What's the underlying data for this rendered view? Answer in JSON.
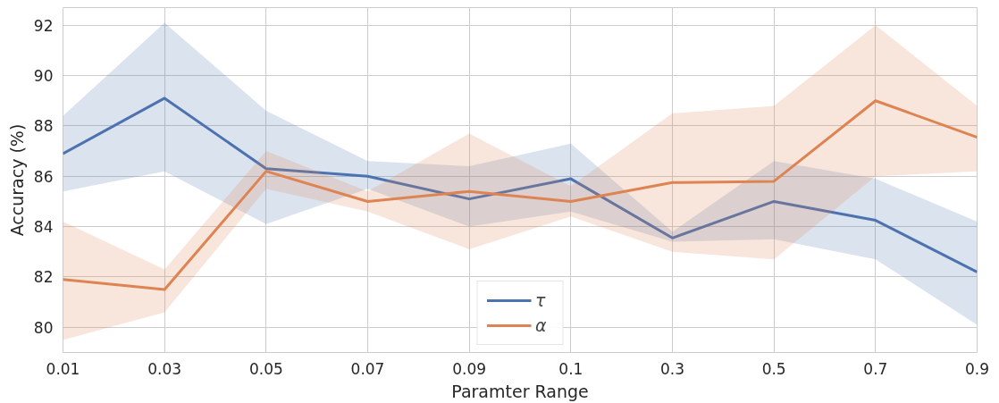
{
  "chart_data": {
    "type": "line",
    "xlabel": "Paramter Range",
    "ylabel": "Accuracy (%)",
    "categories": [
      "0.01",
      "0.03",
      "0.05",
      "0.07",
      "0.09",
      "0.1",
      "0.3",
      "0.5",
      "0.7",
      "0.9"
    ],
    "series": [
      {
        "name": "τ",
        "color": "#4c72b0",
        "values": [
          86.9,
          89.1,
          86.3,
          86.0,
          85.1,
          85.9,
          83.55,
          85.0,
          84.25,
          82.2
        ],
        "lower": [
          85.4,
          86.2,
          84.1,
          85.5,
          84.0,
          84.6,
          83.4,
          83.5,
          82.7,
          80.1
        ],
        "upper": [
          88.4,
          92.1,
          88.6,
          86.6,
          86.4,
          87.3,
          83.8,
          86.6,
          85.9,
          84.2
        ]
      },
      {
        "name": "α",
        "color": "#dd8452",
        "values": [
          81.9,
          81.5,
          86.2,
          85.0,
          85.4,
          85.0,
          85.75,
          85.8,
          89.0,
          87.55
        ],
        "lower": [
          79.5,
          80.6,
          85.5,
          84.6,
          83.1,
          84.4,
          83.0,
          82.7,
          86.0,
          86.2
        ],
        "upper": [
          84.2,
          82.3,
          87.0,
          85.4,
          87.7,
          85.6,
          88.5,
          88.8,
          92.0,
          88.8
        ]
      }
    ],
    "ylim": [
      79,
      92.7
    ],
    "yticks": [
      80,
      82,
      84,
      86,
      88,
      90,
      92
    ],
    "grid": true,
    "legend": "bottom",
    "marker": "none",
    "line_style": "solid"
  }
}
